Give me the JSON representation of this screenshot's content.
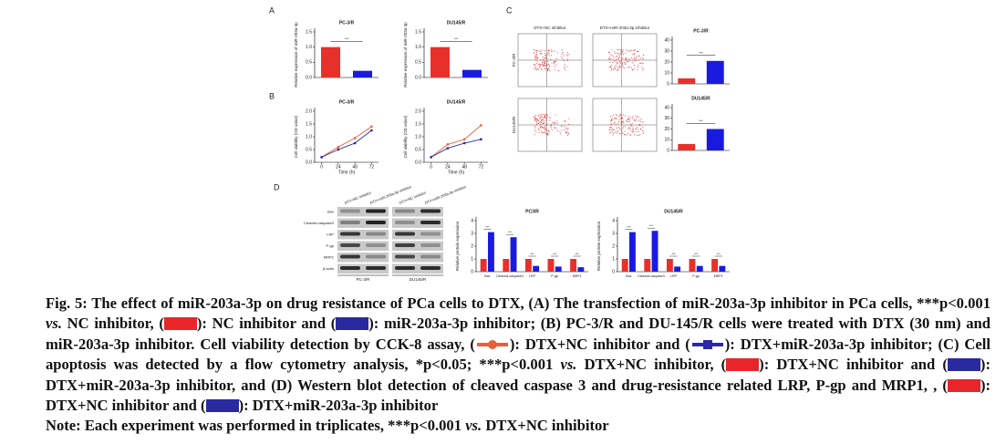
{
  "panel_labels": [
    "A",
    "B",
    "C",
    "D"
  ],
  "chart_data": [
    {
      "type": "bar",
      "title": "PC-3/R",
      "ylabel": "Relative expression of miR-203a-3p",
      "categories": [
        null,
        null
      ],
      "values": [
        1.0,
        0.22
      ],
      "colors": [
        "#e8302a",
        "#1a1adf"
      ],
      "ylim": [
        0,
        1.5
      ],
      "yticks": [
        {
          "value": 0,
          "label": "0.0"
        },
        {
          "value": 0.5,
          "label": "0.5"
        },
        {
          "value": 1,
          "label": "1.0"
        },
        {
          "value": 1.5,
          "label": "1.5"
        }
      ],
      "annotations": [
        "***"
      ]
    },
    {
      "type": "bar",
      "title": "DU145/R",
      "ylabel": "Relative expression of miR-203a-3p",
      "categories": [
        null,
        null
      ],
      "values": [
        1.0,
        0.25
      ],
      "colors": [
        "#e8302a",
        "#1a1adf"
      ],
      "ylim": [
        0,
        1.5
      ],
      "yticks": [
        {
          "value": 0,
          "label": "0.0"
        },
        {
          "value": 0.5,
          "label": "0.5"
        },
        {
          "value": 1,
          "label": "1.0"
        },
        {
          "value": 1.5,
          "label": "1.5"
        }
      ],
      "annotations": [
        "***"
      ]
    },
    {
      "type": "line",
      "title": "PC-3/R",
      "xlabel": "Time (h)",
      "ylabel": "Cell viability (OD value)",
      "x": [
        0,
        24,
        48,
        72
      ],
      "xlim": [
        -10,
        82
      ],
      "xticks": [
        0,
        24,
        48,
        72
      ],
      "ylim": [
        0,
        2
      ],
      "yticks": [
        {
          "value": 0,
          "label": "0.0"
        },
        {
          "value": 0.5,
          "label": "0.5"
        },
        {
          "value": 1,
          "label": "1.0"
        },
        {
          "value": 1.5,
          "label": "1.5"
        },
        {
          "value": 2,
          "label": "2.0"
        }
      ],
      "series": [
        {
          "color": "#e8603a",
          "values": [
            0.2,
            0.6,
            0.95,
            1.4
          ]
        },
        {
          "color": "#2a2aa8",
          "values": [
            0.2,
            0.5,
            0.75,
            1.25
          ]
        }
      ]
    },
    {
      "type": "line",
      "title": "DU145/R",
      "xlabel": "Time (h)",
      "ylabel": "Cell viability (OD value)",
      "x": [
        0,
        24,
        48,
        72
      ],
      "xlim": [
        -10,
        82
      ],
      "xticks": [
        0,
        24,
        48,
        72
      ],
      "ylim": [
        0,
        2
      ],
      "yticks": [
        {
          "value": 0,
          "label": "0.0"
        },
        {
          "value": 0.5,
          "label": "0.5"
        },
        {
          "value": 1,
          "label": "1.0"
        },
        {
          "value": 1.5,
          "label": "1.5"
        },
        {
          "value": 2,
          "label": "2.0"
        }
      ],
      "series": [
        {
          "color": "#e8603a",
          "values": [
            0.2,
            0.7,
            0.9,
            1.45
          ]
        },
        {
          "color": "#2a2aa8",
          "values": [
            0.2,
            0.55,
            0.75,
            0.9
          ]
        }
      ]
    },
    {
      "type": "bar",
      "title": "PC-3/R",
      "ylabel": "Apoptotic cells (%)",
      "categories": [
        null,
        null
      ],
      "values": [
        5,
        21
      ],
      "colors": [
        "#e8302a",
        "#1a1adf"
      ],
      "ylim": [
        0,
        40
      ],
      "yticks": [
        0,
        10,
        20,
        30,
        40
      ],
      "annotations": [
        "***"
      ]
    },
    {
      "type": "bar",
      "title": "DU145/R",
      "ylabel": "Apoptotic cells (%)",
      "categories": [
        null,
        null
      ],
      "values": [
        6,
        20
      ],
      "colors": [
        "#e8302a",
        "#1a1adf"
      ],
      "ylim": [
        0,
        40
      ],
      "yticks": [
        0,
        10,
        20,
        30,
        40
      ],
      "annotations": [
        "***"
      ]
    },
    {
      "type": "grouped",
      "title": "PC3/R",
      "ylabel": "Relative protein expression",
      "categories": [
        "Bax",
        "Cleaved-caspase3",
        "LRP",
        "P-gp",
        "MRP1"
      ],
      "ylim": [
        0,
        4
      ],
      "yticks": [
        0,
        1,
        2,
        3,
        4
      ],
      "series": [
        {
          "color": "#e8302a",
          "values": [
            1,
            1,
            1,
            1,
            1
          ]
        },
        {
          "color": "#1a1adf",
          "values": [
            3.1,
            2.7,
            0.45,
            0.4,
            0.35
          ]
        }
      ],
      "annotations": [
        "***",
        "***",
        "***",
        "***",
        "***"
      ]
    },
    {
      "type": "grouped",
      "title": "DU145/R",
      "ylabel": "Relative protein expression",
      "categories": [
        "Bax",
        "Cleaved-caspase3",
        "LRP",
        "P-gp",
        "MRP1"
      ],
      "ylim": [
        0,
        4
      ],
      "yticks": [
        0,
        1,
        2,
        3,
        4
      ],
      "series": [
        {
          "color": "#e8302a",
          "values": [
            1,
            1,
            1,
            1,
            1
          ]
        },
        {
          "color": "#1a1adf",
          "values": [
            3.1,
            3.2,
            0.4,
            0.45,
            0.45
          ]
        }
      ],
      "annotations": [
        "***",
        "***",
        "***",
        "***",
        "***"
      ]
    }
  ],
  "flow": {
    "columns": [
      "DTX+NC inhibitor",
      "DTX+miR-203a-3p inhibitor"
    ],
    "rows": [
      "PC-3/R",
      "DU145/R"
    ]
  },
  "blot": {
    "columns": [
      "DTX+NC inhibitor",
      "DTX+miR-203a-3p inhibitor",
      "DTX+NC inhibitor",
      "DTX+miR-203a-3p inhibitor"
    ],
    "rows": [
      "Bax",
      "Cleaved-caspase3",
      "LRP",
      "P-gp",
      "MRP1",
      "β-actin"
    ],
    "groups": [
      "PC-3/R",
      "DU145/R"
    ]
  },
  "caption": {
    "parts": [
      "Fig. 5: The effect of miR-203a-3p on drug resistance of PCa cells to DTX, (A) The transfection of miR-203a-3p inhibitor in PCa cells, ***p<0.001",
      "vs.",
      "NC inhibitor, (",
      "): NC inhibitor and (",
      "): miR-203a-3p inhibitor; (B) PC-3/R and DU-145/R cells were treated with DTX (30 nm) and miR-203a-3p inhibitor. Cell viability detection by CCK-8 assay, (",
      "): DTX+NC inhibitor and (",
      "): DTX+miR-203a-3p inhibitor; (C) Cell apoptosis was detected by a flow cytometry analysis, *p<0.05; ***p<0.001",
      "vs.",
      "DTX+NC inhibitor, (",
      "): DTX+NC inhibitor and (",
      "): DTX+miR-203a-3p inhibitor, and (D) Western blot detection of cleaved caspase 3 and drug-resistance related LRP, P-gp and MRP1, , (",
      "): DTX+NC inhibitor and (",
      "): DTX+miR-203a-3p inhibitor"
    ],
    "note": [
      "Note: Each experiment was performed in triplicates, ***p<0.001",
      "vs.",
      "DTX+NC inhibitor"
    ]
  }
}
